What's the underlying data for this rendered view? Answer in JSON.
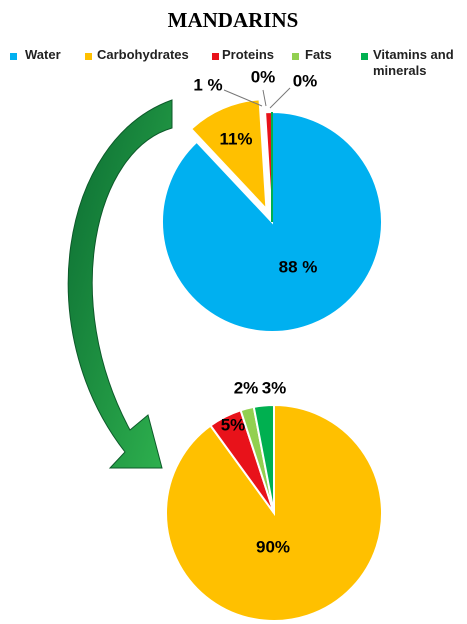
{
  "chart_data": [
    {
      "type": "pie",
      "title": "MANDARINS",
      "categories": [
        "Water",
        "Carbohydrates",
        "Proteins",
        "Fats",
        "Vitamins and minerals"
      ],
      "colors": [
        "#00b0f0",
        "#ffc000",
        "#e8121a",
        "#92d050",
        "#00b050"
      ],
      "values": [
        88,
        11,
        1,
        0,
        0
      ],
      "value_labels": [
        "88 %",
        "11%",
        "1 %",
        "0%",
        "0%"
      ]
    },
    {
      "type": "pie",
      "values": [
        null,
        90,
        5,
        2,
        3
      ],
      "value_labels": [
        null,
        "90%",
        "5%",
        "2%",
        "3%"
      ]
    }
  ]
}
